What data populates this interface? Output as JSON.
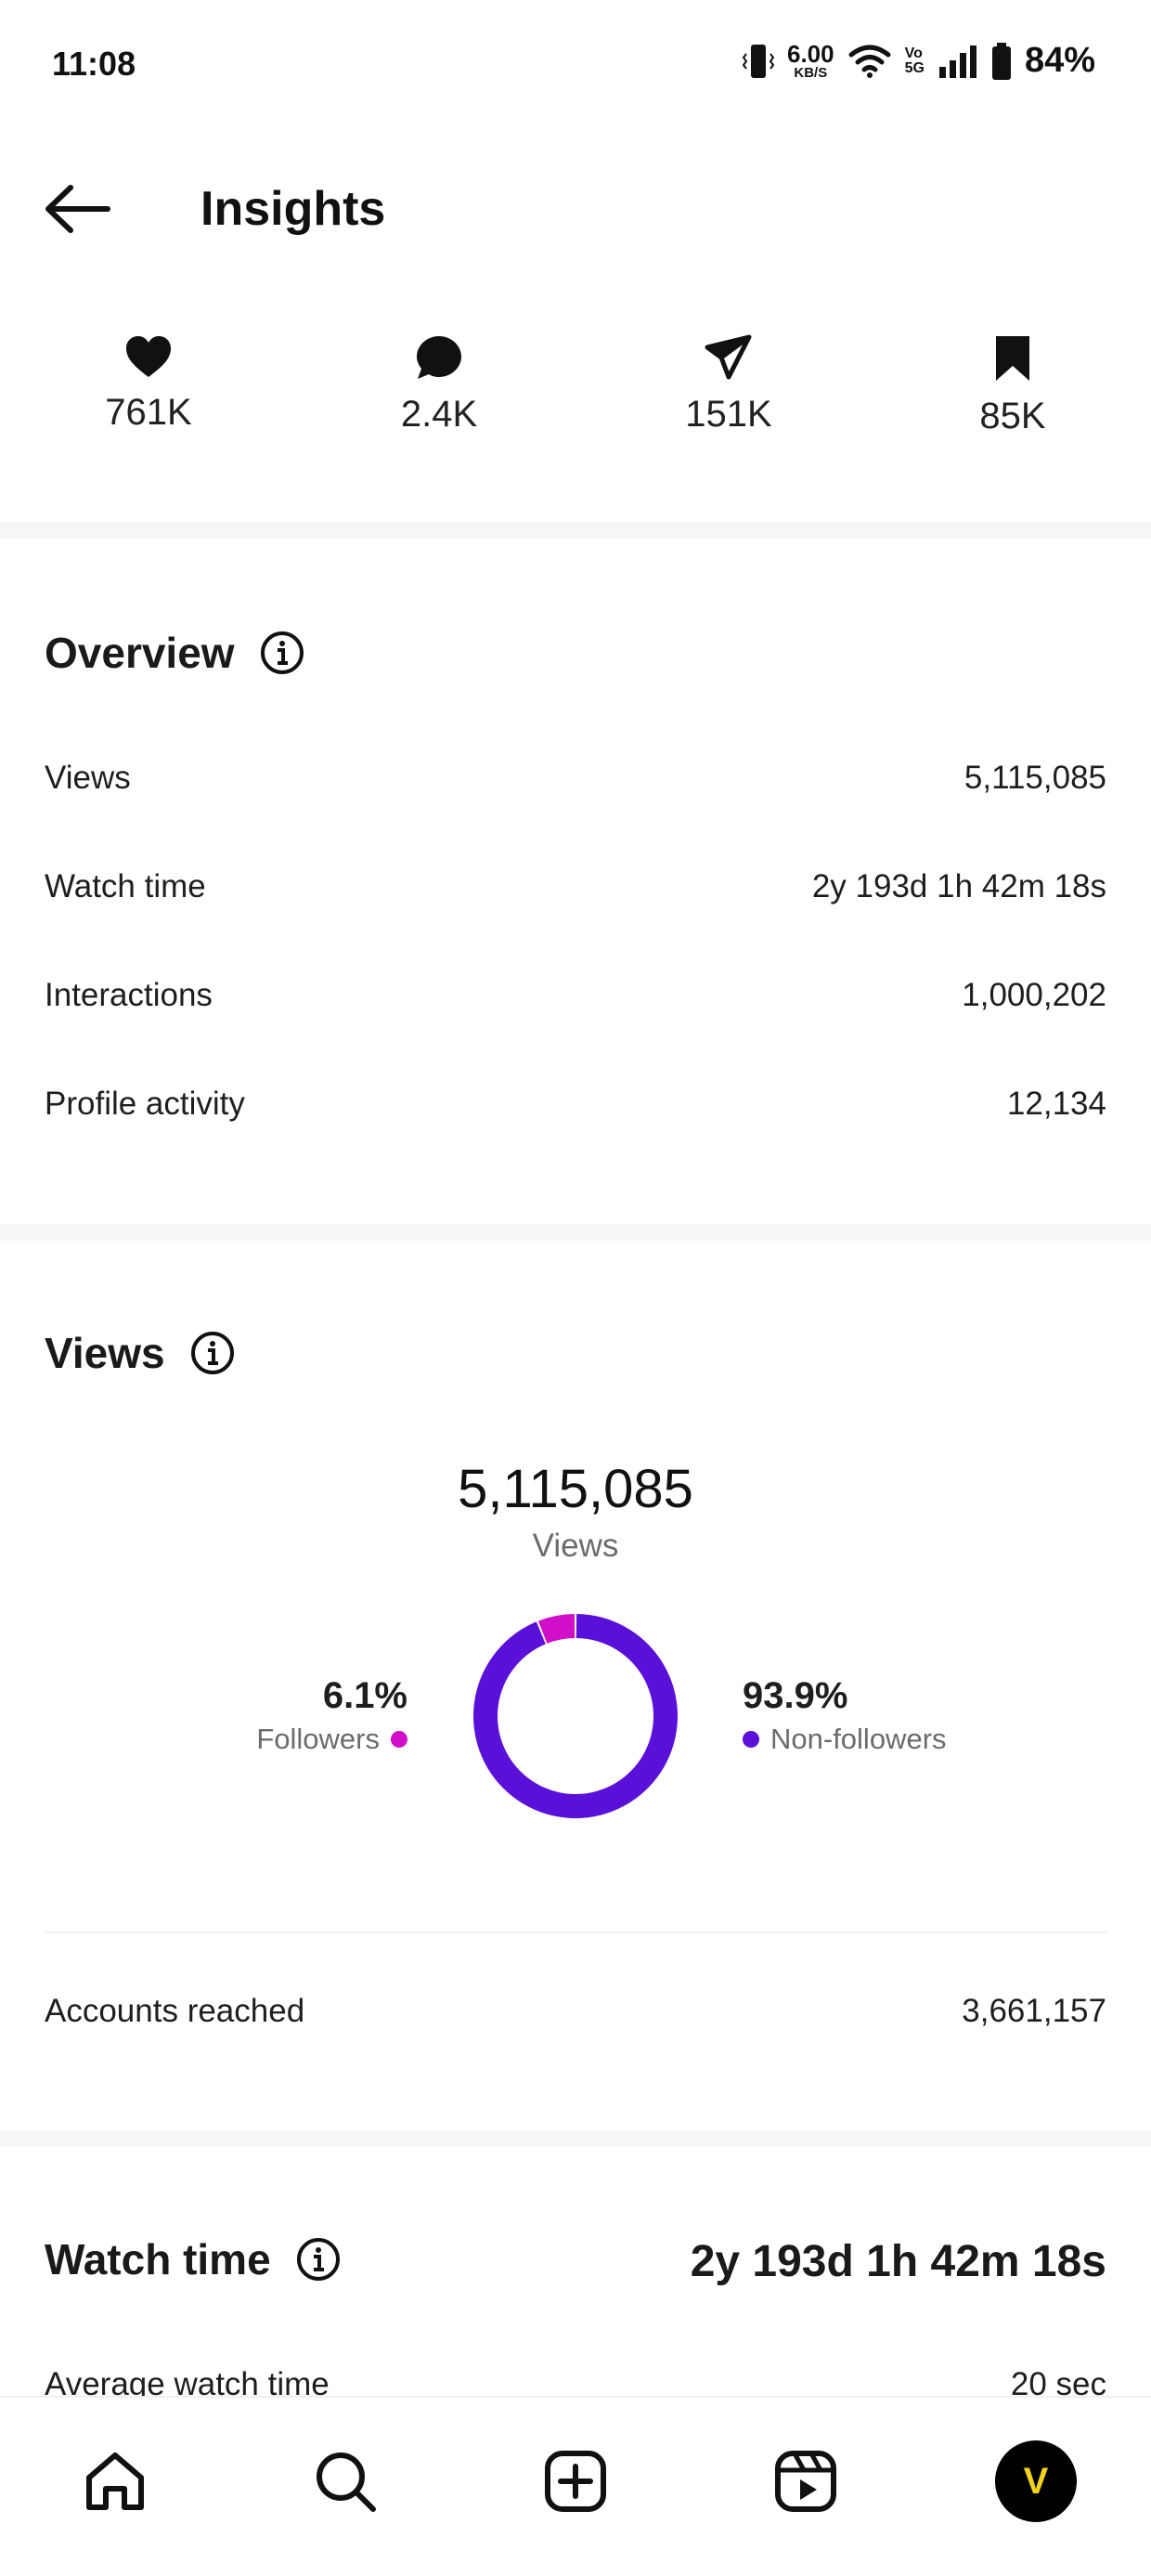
{
  "status_bar": {
    "time": "11:08",
    "net_speed_value": "6.00",
    "net_speed_unit": "KB/S",
    "volte_top": "Vo",
    "volte_bottom": "5G",
    "battery": "84%"
  },
  "header": {
    "title": "Insights"
  },
  "stats": [
    {
      "icon": "heart-icon",
      "value": "761K"
    },
    {
      "icon": "comment-icon",
      "value": "2.4K"
    },
    {
      "icon": "share-icon",
      "value": "151K"
    },
    {
      "icon": "bookmark-icon",
      "value": "85K"
    }
  ],
  "overview": {
    "title": "Overview",
    "rows": [
      {
        "label": "Views",
        "value": "5,115,085"
      },
      {
        "label": "Watch time",
        "value": "2y 193d 1h 42m 18s"
      },
      {
        "label": "Interactions",
        "value": "1,000,202"
      },
      {
        "label": "Profile activity",
        "value": "12,134"
      }
    ]
  },
  "views": {
    "title": "Views",
    "total": "5,115,085",
    "total_label": "Views",
    "followers_pct": "6.1%",
    "followers_label": "Followers",
    "nonfollowers_pct": "93.9%",
    "nonfollowers_label": "Non-followers",
    "accounts_reached_label": "Accounts reached",
    "accounts_reached_value": "3,661,157"
  },
  "chart_data": {
    "type": "pie",
    "categories": [
      "Followers",
      "Non-followers"
    ],
    "values": [
      6.1,
      93.9
    ],
    "colors": [
      "#d10fc8",
      "#5a10d8"
    ],
    "title": "5,115,085",
    "subtitle": "Views"
  },
  "watch_time": {
    "title": "Watch time",
    "value": "2y 193d 1h 42m 18s",
    "avg_label": "Average watch time",
    "avg_value": "20 sec"
  },
  "colors": {
    "followers": "#d10fc8",
    "nonfollowers": "#5a10d8",
    "avatar_letter": "#f2d21b"
  },
  "nav": {
    "items": [
      "home-icon",
      "search-icon",
      "create-icon",
      "reels-icon",
      "profile-avatar"
    ],
    "avatar_letter": "V"
  }
}
